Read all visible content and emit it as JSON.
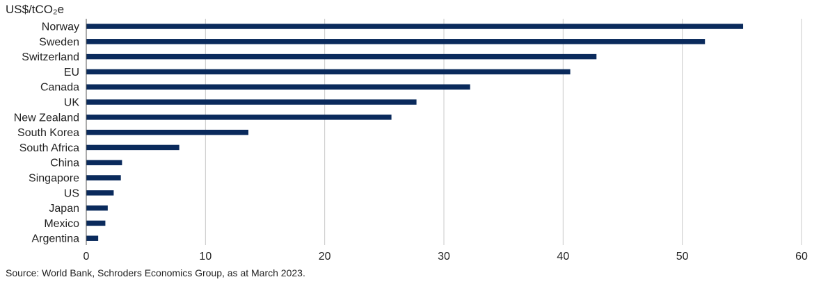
{
  "chart_data": {
    "type": "bar",
    "orientation": "horizontal",
    "ylabel": "US$/tCO₂e",
    "categories": [
      "Norway",
      "Sweden",
      "Switzerland",
      "EU",
      "Canada",
      "UK",
      "New Zealand",
      "South Korea",
      "South Africa",
      "China",
      "Singapore",
      "US",
      "Japan",
      "Mexico",
      "Argentina"
    ],
    "values": [
      55.1,
      51.9,
      42.8,
      40.6,
      32.2,
      27.7,
      25.6,
      13.6,
      7.8,
      3.0,
      2.9,
      2.3,
      1.8,
      1.6,
      1.0
    ],
    "xlim": [
      0,
      60
    ],
    "xticks": [
      "0",
      "10",
      "20",
      "30",
      "40",
      "50",
      "60"
    ],
    "grid": "vertical",
    "bar_color": "#0a2a5c",
    "grid_color": "#c8c8c8"
  },
  "source": "Source: World Bank, Schroders Economics Group, as at March 2023."
}
